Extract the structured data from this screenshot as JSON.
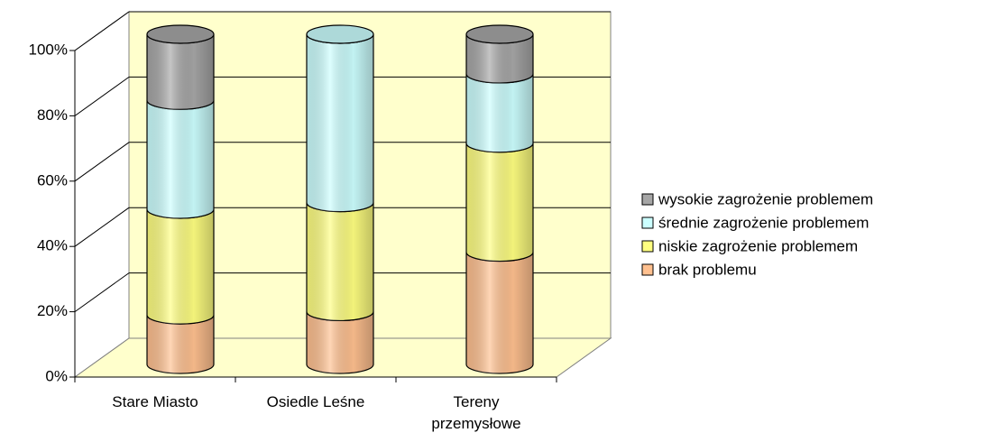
{
  "chart_data": {
    "type": "stacked_cylinder",
    "categories": [
      "Stare Miasto",
      "Osiedle Leśne",
      "Tereny przemysłowe"
    ],
    "series": [
      {
        "name": "brak problemu",
        "color": "#FFC08F",
        "values": [
          15,
          16,
          34
        ]
      },
      {
        "name": "niskie zagrożenie problemem",
        "color": "#FFFF80",
        "values": [
          32,
          33,
          33
        ]
      },
      {
        "name": "średnie zagrożenie problemem",
        "color": "#CCFFFF",
        "values": [
          33,
          51,
          21
        ]
      },
      {
        "name": "wysokie zagrożenie problemem",
        "color": "#A6A6A6",
        "values": [
          20,
          0,
          12
        ]
      }
    ],
    "ylim": [
      0,
      100
    ],
    "yticks": [
      {
        "value": 0,
        "label": "0%"
      },
      {
        "value": 20,
        "label": "20%"
      },
      {
        "value": 40,
        "label": "40%"
      },
      {
        "value": 60,
        "label": "60%"
      },
      {
        "value": 80,
        "label": "80%"
      },
      {
        "value": 100,
        "label": "100%"
      }
    ],
    "grid": true,
    "legend": "right"
  }
}
